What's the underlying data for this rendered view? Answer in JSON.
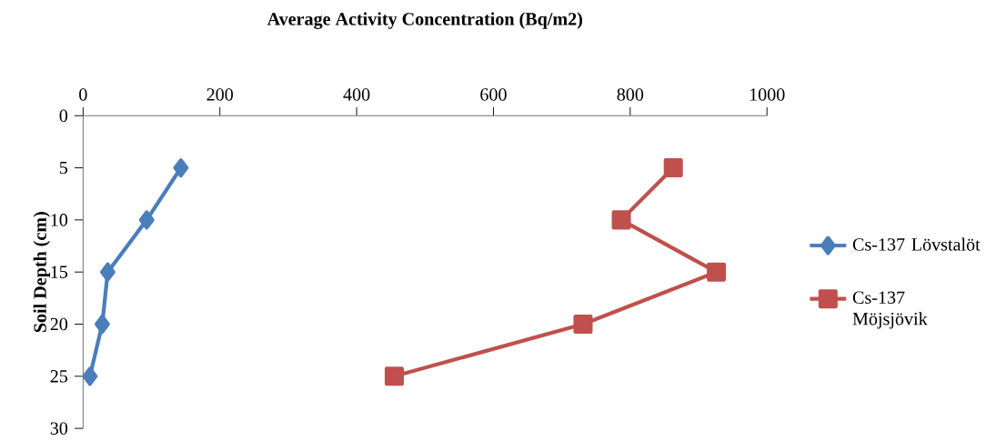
{
  "chart_data": {
    "type": "line",
    "xlabel": "Average Activity Concentration (Bq/m2)",
    "ylabel": "Soil Depth (cm)",
    "xlim": [
      0,
      1000
    ],
    "xticks": [
      0,
      200,
      400,
      600,
      800,
      1000
    ],
    "ylim": [
      30,
      0
    ],
    "yticks": [
      0,
      5,
      10,
      15,
      20,
      25,
      30
    ],
    "grid": false,
    "legend": "right",
    "series": [
      {
        "name": "Cs-137 Lövstalöt",
        "color": "#4a7ebb",
        "marker": "diamond",
        "x": [
          143,
          93,
          36,
          28,
          10
        ],
        "values": [
          5,
          10,
          15,
          20,
          25
        ]
      },
      {
        "name": "Cs-137 Möjsjövik",
        "color": "#c0504d",
        "marker": "square",
        "x": [
          863,
          787,
          926,
          731,
          455
        ],
        "values": [
          5,
          10,
          15,
          20,
          25
        ]
      }
    ]
  }
}
